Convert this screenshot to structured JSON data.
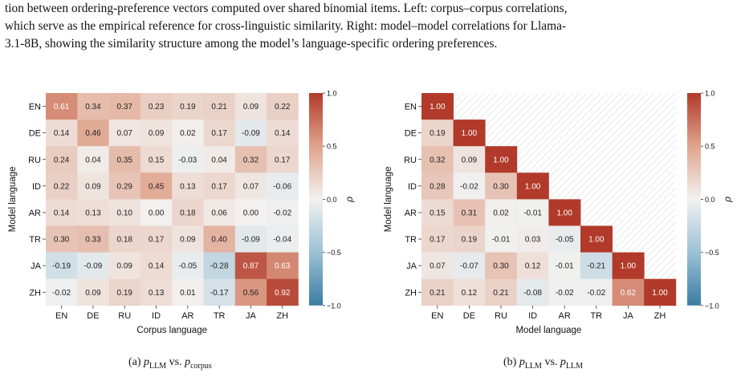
{
  "caption": {
    "line1": "tion between ordering-preference vectors computed over shared binomial items. Left: corpus–corpus correlations,",
    "line2": "which serve as the empirical reference for cross-linguistic similarity. Right: model–model correlations for Llama-",
    "line3": "3.1-8B, showing the similarity structure among the model’s language-specific ordering preferences."
  },
  "colors": {
    "negative": "#3b7ca3",
    "neutral": "#f2f1f0",
    "positive": "#b13a2a",
    "hatch": "#d9d9d9"
  },
  "chart_data": [
    {
      "type": "heatmap",
      "title": "",
      "xlabel": "Corpus language",
      "ylabel": "Model language",
      "x": [
        "EN",
        "DE",
        "RU",
        "ID",
        "AR",
        "TR",
        "JA",
        "ZH"
      ],
      "y": [
        "EN",
        "DE",
        "RU",
        "ID",
        "AR",
        "TR",
        "JA",
        "ZH"
      ],
      "values": [
        [
          0.61,
          0.34,
          0.37,
          0.23,
          0.19,
          0.21,
          0.09,
          0.22
        ],
        [
          0.14,
          0.46,
          0.07,
          0.09,
          0.02,
          0.17,
          -0.09,
          0.14
        ],
        [
          0.24,
          0.04,
          0.35,
          0.15,
          -0.03,
          0.04,
          0.32,
          0.17
        ],
        [
          0.22,
          0.09,
          0.29,
          0.45,
          0.13,
          0.17,
          0.07,
          -0.06
        ],
        [
          0.14,
          0.13,
          0.1,
          0.0,
          0.18,
          0.06,
          0.0,
          -0.02
        ],
        [
          0.3,
          0.33,
          0.18,
          0.17,
          0.09,
          0.4,
          -0.09,
          -0.04
        ],
        [
          -0.19,
          -0.09,
          0.09,
          0.14,
          -0.05,
          -0.28,
          0.87,
          0.63
        ],
        [
          -0.02,
          0.09,
          0.19,
          0.13,
          0.01,
          -0.17,
          0.56,
          0.92
        ]
      ],
      "colorbar": {
        "label": "ρ",
        "range": [
          -1.0,
          1.0
        ],
        "ticks": [
          "1.0",
          "0.5",
          "0.0",
          "−0.5",
          "−1.0"
        ]
      },
      "triangle": "full",
      "subcaption": {
        "prefix": "(a) ",
        "left_sym": "p",
        "left_sub": "LLM",
        "mid": " vs. ",
        "right_sym": "p",
        "right_sub": "corpus"
      }
    },
    {
      "type": "heatmap",
      "title": "",
      "xlabel": "Model language",
      "ylabel": "Model language",
      "x": [
        "EN",
        "DE",
        "RU",
        "ID",
        "AR",
        "TR",
        "JA",
        "ZH"
      ],
      "y": [
        "EN",
        "DE",
        "RU",
        "ID",
        "AR",
        "TR",
        "JA",
        "ZH"
      ],
      "values": [
        [
          1.0,
          null,
          null,
          null,
          null,
          null,
          null,
          null
        ],
        [
          0.19,
          1.0,
          null,
          null,
          null,
          null,
          null,
          null
        ],
        [
          0.32,
          0.09,
          1.0,
          null,
          null,
          null,
          null,
          null
        ],
        [
          0.28,
          -0.02,
          0.3,
          1.0,
          null,
          null,
          null,
          null
        ],
        [
          0.15,
          0.31,
          0.02,
          -0.01,
          1.0,
          null,
          null,
          null
        ],
        [
          0.17,
          0.19,
          -0.01,
          0.03,
          -0.05,
          1.0,
          null,
          null
        ],
        [
          0.07,
          -0.07,
          0.3,
          0.12,
          -0.01,
          -0.21,
          1.0,
          null
        ],
        [
          0.21,
          0.12,
          0.21,
          -0.08,
          -0.02,
          -0.02,
          0.62,
          1.0
        ]
      ],
      "colorbar": {
        "label": "ρ",
        "range": [
          -1.0,
          1.0
        ],
        "ticks": [
          "1.0",
          "0.5",
          "0.0",
          "−0.5",
          "−1.0"
        ]
      },
      "triangle": "lower",
      "subcaption": {
        "prefix": "(b) ",
        "left_sym": "p",
        "left_sub": "LLM",
        "mid": " vs. ",
        "right_sym": "p",
        "right_sub": "LLM"
      }
    }
  ]
}
